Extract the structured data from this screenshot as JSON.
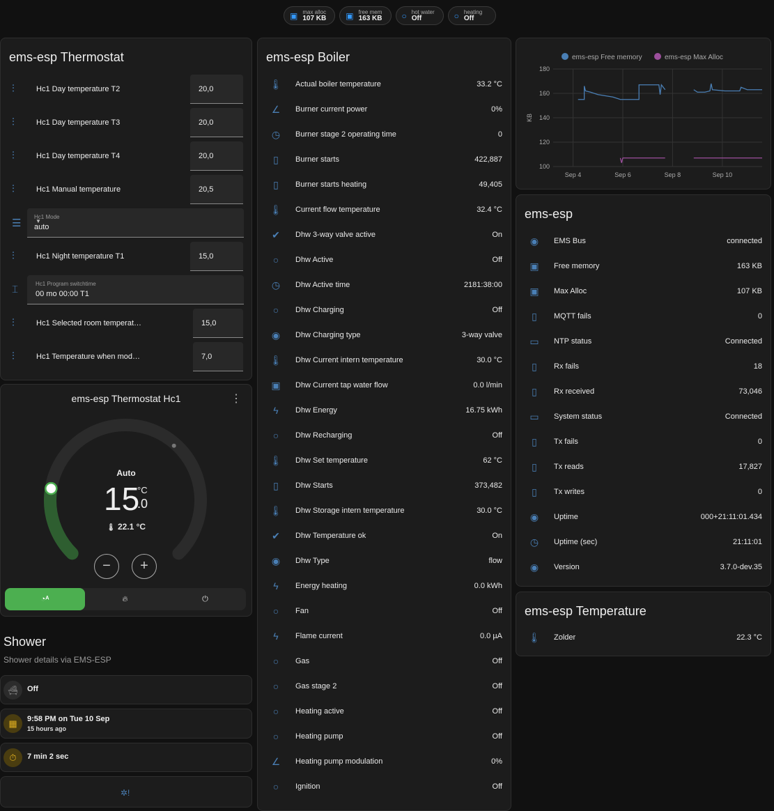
{
  "chips": [
    {
      "label": "max alloc",
      "value": "107 KB",
      "icon": "chip-icon"
    },
    {
      "label": "free mem",
      "value": "163 KB",
      "icon": "chip-icon"
    },
    {
      "label": "hot water",
      "value": "Off",
      "icon": "circle-outline-icon"
    },
    {
      "label": "heating",
      "value": "Off",
      "icon": "circle-outline-icon"
    }
  ],
  "thermostat": {
    "title": "ems-esp Thermostat",
    "rows": [
      {
        "type": "number",
        "label": "Hc1 Day temperature T2",
        "value": "20,0",
        "icon": "thermometer-water-icon"
      },
      {
        "type": "number",
        "label": "Hc1 Day temperature T3",
        "value": "20,0",
        "icon": "thermometer-water-icon"
      },
      {
        "type": "number",
        "label": "Hc1 Day temperature T4",
        "value": "20,0",
        "icon": "thermometer-water-icon"
      },
      {
        "type": "number",
        "label": "Hc1 Manual temperature",
        "value": "20,5",
        "icon": "thermometer-water-icon"
      },
      {
        "type": "select",
        "label": "Hc1 Mode",
        "value": "auto",
        "icon": "list-icon"
      },
      {
        "type": "number",
        "label": "Hc1 Night temperature T1",
        "value": "15,0",
        "icon": "thermometer-water-icon"
      },
      {
        "type": "text",
        "label": "Hc1 Program switchtime",
        "value": "00 mo 00:00 T1",
        "icon": "form-textbox-icon"
      },
      {
        "type": "number",
        "label": "Hc1 Selected room temperat…",
        "value": "15,0",
        "icon": "thermometer-water-icon"
      },
      {
        "type": "number",
        "label": "Hc1 Temperature when mod…",
        "value": "7,0",
        "icon": "thermometer-water-icon"
      }
    ]
  },
  "hc1": {
    "title": "ems-esp Thermostat Hc1",
    "mode": "Auto",
    "target_int": "15",
    "target_dec": ".0",
    "unit": "°C",
    "current": "22.1 °C",
    "setpoint_fraction": 0.2,
    "modes": [
      "auto",
      "heat",
      "off"
    ],
    "active_mode": "auto",
    "accent": "#4caf50"
  },
  "shower": {
    "title": "Shower",
    "subtitle": "Shower details via EMS-ESP",
    "state": "Off",
    "last_time": "9:58 PM on Tue 10 Sep",
    "last_ago": "15 hours ago",
    "duration": "7 min 2 sec"
  },
  "boiler": {
    "title": "ems-esp Boiler",
    "rows": [
      [
        "Actual boiler temperature",
        "33.2 °C",
        "thermometer-icon"
      ],
      [
        "Burner current power",
        "0%",
        "angle-icon"
      ],
      [
        "Burner stage 2 operating time",
        "0",
        "timer-icon"
      ],
      [
        "Burner starts",
        "422,887",
        "counter-icon"
      ],
      [
        "Burner starts heating",
        "49,405",
        "counter-icon"
      ],
      [
        "Current flow temperature",
        "32.4 °C",
        "thermometer-icon"
      ],
      [
        "Dhw 3-way valve active",
        "On",
        "check-circle-icon"
      ],
      [
        "Dhw Active",
        "Off",
        "circle-outline-icon"
      ],
      [
        "Dhw Active time",
        "2181:38:00",
        "timer-icon"
      ],
      [
        "Dhw Charging",
        "Off",
        "circle-outline-icon"
      ],
      [
        "Dhw Charging type",
        "3-way valve",
        "eye-icon"
      ],
      [
        "Dhw Current intern temperature",
        "30.0 °C",
        "thermometer-icon"
      ],
      [
        "Dhw Current tap water flow",
        "0.0 l/min",
        "water-pump-icon"
      ],
      [
        "Dhw Energy",
        "16.75 kWh",
        "flash-icon"
      ],
      [
        "Dhw Recharging",
        "Off",
        "circle-outline-icon"
      ],
      [
        "Dhw Set temperature",
        "62 °C",
        "thermometer-icon"
      ],
      [
        "Dhw Starts",
        "373,482",
        "counter-icon"
      ],
      [
        "Dhw Storage intern temperature",
        "30.0 °C",
        "thermometer-icon"
      ],
      [
        "Dhw Temperature ok",
        "On",
        "check-circle-icon"
      ],
      [
        "Dhw Type",
        "flow",
        "eye-icon"
      ],
      [
        "Energy heating",
        "0.0 kWh",
        "flash-icon"
      ],
      [
        "Fan",
        "Off",
        "circle-outline-icon"
      ],
      [
        "Flame current",
        "0.0 µA",
        "flash-circle-icon"
      ],
      [
        "Gas",
        "Off",
        "circle-outline-icon"
      ],
      [
        "Gas stage 2",
        "Off",
        "circle-outline-icon"
      ],
      [
        "Heating active",
        "Off",
        "circle-outline-icon"
      ],
      [
        "Heating pump",
        "Off",
        "circle-outline-icon"
      ],
      [
        "Heating pump modulation",
        "0%",
        "angle-icon"
      ],
      [
        "Ignition",
        "Off",
        "circle-outline-icon"
      ]
    ]
  },
  "esp": {
    "title": "ems-esp",
    "rows": [
      [
        "EMS Bus",
        "connected",
        "eye-icon"
      ],
      [
        "Free memory",
        "163 KB",
        "chip-icon"
      ],
      [
        "Max Alloc",
        "107 KB",
        "chip-icon"
      ],
      [
        "MQTT fails",
        "0",
        "counter-icon"
      ],
      [
        "NTP status",
        "Connected",
        "monitor-icon"
      ],
      [
        "Rx fails",
        "18",
        "counter-icon"
      ],
      [
        "Rx received",
        "73,046",
        "counter-icon"
      ],
      [
        "System status",
        "Connected",
        "monitor-icon"
      ],
      [
        "Tx fails",
        "0",
        "counter-icon"
      ],
      [
        "Tx reads",
        "17,827",
        "counter-icon"
      ],
      [
        "Tx writes",
        "0",
        "counter-icon"
      ],
      [
        "Uptime",
        "000+21:11:01.434",
        "eye-icon"
      ],
      [
        "Uptime (sec)",
        "21:11:01",
        "timer-icon"
      ],
      [
        "Version",
        "3.7.0-dev.35",
        "eye-icon"
      ]
    ]
  },
  "temperature": {
    "title": "ems-esp Temperature",
    "rows": [
      [
        "Zolder",
        "22.3 °C",
        "thermometer-icon"
      ]
    ]
  },
  "chart_data": {
    "type": "line",
    "ylabel": "KB",
    "ylim": [
      100,
      180
    ],
    "yticks": [
      "100",
      "120",
      "140",
      "160",
      "180"
    ],
    "xticks": [
      "Sep 4",
      "Sep 6",
      "Sep 8",
      "Sep 10"
    ],
    "xtick_days": [
      4,
      6,
      8,
      10
    ],
    "xlim_days": [
      3.2,
      11.6
    ],
    "grid": true,
    "legend": "top",
    "series": [
      {
        "name": "ems-esp Free memory",
        "color": "#4a7fb5",
        "segments": [
          [
            [
              4.2,
              155
            ],
            [
              4.45,
              155
            ],
            [
              4.45,
              166
            ],
            [
              4.5,
              162
            ],
            [
              4.7,
              161
            ],
            [
              5.0,
              159
            ],
            [
              5.3,
              158
            ],
            [
              5.6,
              157
            ],
            [
              5.9,
              155
            ],
            [
              6.65,
              155
            ],
            [
              6.65,
              167
            ],
            [
              7.45,
              167
            ],
            [
              7.5,
              159
            ],
            [
              7.55,
              167
            ],
            [
              7.7,
              163
            ]
          ],
          [
            [
              8.85,
              163
            ],
            [
              9.0,
              161
            ],
            [
              9.3,
              161
            ],
            [
              9.5,
              162
            ],
            [
              9.55,
              168
            ],
            [
              9.6,
              163
            ],
            [
              10.1,
              162
            ],
            [
              10.7,
              162
            ],
            [
              10.75,
              165
            ],
            [
              11.0,
              163
            ],
            [
              11.6,
              163
            ]
          ]
        ]
      },
      {
        "name": "ems-esp Max Alloc",
        "color": "#9c4f9c",
        "segments": [
          [
            [
              5.9,
              107
            ],
            [
              5.95,
              103
            ],
            [
              6.0,
              107
            ],
            [
              7.7,
              107
            ]
          ],
          [
            [
              8.85,
              107
            ],
            [
              11.6,
              107
            ]
          ]
        ]
      }
    ]
  }
}
